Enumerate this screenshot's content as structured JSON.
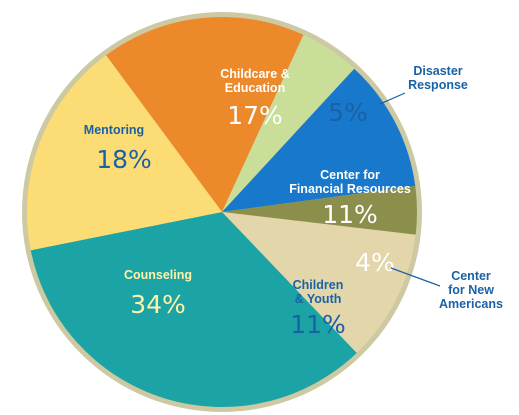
{
  "chart_data": {
    "type": "pie",
    "title": "",
    "slices": [
      {
        "label": [
          "Childcare &",
          "Education"
        ],
        "value": 17,
        "display": "17%",
        "color": "#ec8a2b",
        "name_color": "#ffffff",
        "pct_color": "#ffffff"
      },
      {
        "label": [
          "Disaster",
          "Response"
        ],
        "value": 5,
        "display": "5%",
        "color": "#c9df99",
        "name_color": "#1a62a6",
        "pct_color": "#1a62a6"
      },
      {
        "label": [
          "Center for",
          "Financial Resources"
        ],
        "value": 11,
        "display": "11%",
        "color": "#1878cc",
        "name_color": "#ffffff",
        "pct_color": "#ffffff"
      },
      {
        "label": [
          "Center",
          "for New",
          "Americans"
        ],
        "value": 4,
        "display": "4%",
        "color": "#8c8e4c",
        "name_color": "#1a62a6",
        "pct_color": "#ffffff"
      },
      {
        "label": [
          "Children",
          "& Youth"
        ],
        "value": 11,
        "display": "11%",
        "color": "#e2d6aa",
        "name_color": "#1a62a6",
        "pct_color": "#1a62a6"
      },
      {
        "label": [
          "Counseling"
        ],
        "value": 34,
        "display": "34%",
        "color": "#1ba3a5",
        "name_color": "#fff3a8",
        "pct_color": "#fff3a8"
      },
      {
        "label": [
          "Mentoring"
        ],
        "value": 18,
        "display": "18%",
        "color": "#fcdc75",
        "name_color": "#1a62a6",
        "pct_color": "#1a62a6"
      }
    ],
    "border_color": "#cdc9a3"
  }
}
